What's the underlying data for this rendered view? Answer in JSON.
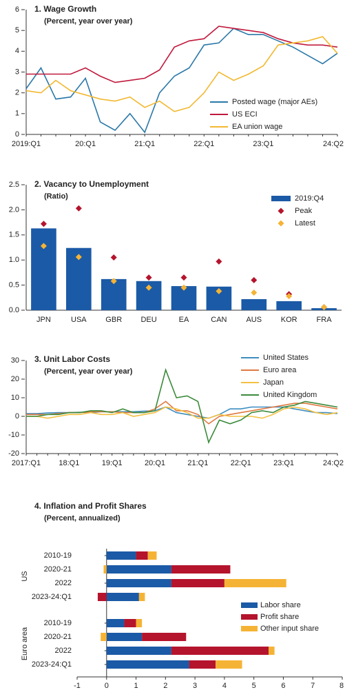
{
  "chart_data": [
    {
      "type": "line",
      "title": "1. Wage Growth",
      "subtitle": "(Percent, year over year)",
      "categories": [
        "2019:Q1",
        null,
        null,
        null,
        "20:Q1",
        null,
        null,
        null,
        "21:Q1",
        null,
        null,
        null,
        "22:Q1",
        null,
        null,
        null,
        "23:Q1",
        null,
        null,
        null,
        null,
        "24:Q2"
      ],
      "ylim": [
        0,
        6
      ],
      "yticks": [
        0,
        1,
        2,
        3,
        4,
        5,
        6
      ],
      "legend": "lower right",
      "series": [
        {
          "name": "Posted wage (major AEs)",
          "color": "#2a78a8",
          "values": [
            2.2,
            3.2,
            1.7,
            1.8,
            2.7,
            0.6,
            0.2,
            1.0,
            0.1,
            2.0,
            2.8,
            3.2,
            4.3,
            4.4,
            5.1,
            4.8,
            4.8,
            4.5,
            4.2,
            3.8,
            3.4,
            3.9
          ]
        },
        {
          "name": "US ECI",
          "color": "#c0183c",
          "values": [
            2.9,
            2.9,
            2.9,
            2.9,
            3.2,
            2.8,
            2.5,
            2.6,
            2.7,
            3.1,
            4.2,
            4.5,
            4.6,
            5.2,
            5.1,
            5.0,
            4.9,
            4.6,
            4.4,
            4.3,
            4.3,
            4.2
          ]
        },
        {
          "name": "EA union wage",
          "color": "#f2b830",
          "values": [
            2.1,
            2.0,
            2.6,
            2.1,
            1.9,
            1.7,
            1.6,
            1.8,
            1.3,
            1.6,
            1.1,
            1.3,
            2.0,
            3.0,
            2.6,
            2.9,
            3.3,
            4.3,
            4.4,
            4.5,
            4.7,
            3.9
          ]
        }
      ]
    },
    {
      "type": "bar",
      "title": "2. Vacancy to Unemployment",
      "subtitle": "(Ratio)",
      "categories": [
        "JPN",
        "USA",
        "GBR",
        "DEU",
        "EA",
        "CAN",
        "AUS",
        "KOR",
        "FRA"
      ],
      "ylim": [
        0,
        2.5
      ],
      "yticks": [
        {
          "value": 0,
          "label": "0.0"
        },
        0.5,
        {
          "value": 1,
          "label": "1.0"
        },
        1.5,
        {
          "value": 2,
          "label": "2.0"
        },
        2.5
      ],
      "legend": "upper right",
      "series": [
        {
          "name": "2019:Q4",
          "mark": "bar",
          "color": "#1b5aa6",
          "values": [
            1.63,
            1.24,
            0.62,
            0.58,
            0.48,
            0.47,
            0.22,
            0.18,
            0.04
          ]
        },
        {
          "name": "Peak",
          "mark": "diamond",
          "color": "#b5142d",
          "values": [
            1.72,
            2.03,
            1.05,
            0.65,
            0.65,
            0.97,
            0.6,
            0.32,
            0.06
          ]
        },
        {
          "name": "Latest",
          "mark": "diamond",
          "color": "#f5b335",
          "values": [
            1.28,
            1.06,
            0.58,
            0.45,
            0.45,
            0.38,
            0.35,
            0.28,
            0.06
          ]
        }
      ]
    },
    {
      "type": "line",
      "title": "3. Unit Labor Costs",
      "subtitle": "(Percent, year over year)",
      "categories": [
        "2017:Q1",
        null,
        null,
        null,
        "18:Q1",
        null,
        null,
        null,
        "19:Q1",
        null,
        null,
        null,
        "20:Q1",
        null,
        null,
        null,
        "21:Q1",
        null,
        null,
        null,
        "22:Q1",
        null,
        null,
        null,
        "23:Q1",
        null,
        null,
        null,
        null,
        "24:Q2"
      ],
      "ylim": [
        -20,
        30
      ],
      "yticks": [
        -20,
        -10,
        0,
        10,
        20,
        30
      ],
      "legend": "upper right",
      "series": [
        {
          "name": "United States",
          "color": "#3c8cc0",
          "values": [
            1.5,
            1.5,
            1.8,
            2,
            2,
            2.2,
            2,
            2.5,
            2.5,
            2.5,
            2.5,
            2.8,
            3,
            5,
            2,
            1,
            0,
            -1,
            1,
            4,
            4,
            5,
            5,
            5,
            5,
            4,
            3,
            2,
            2,
            1.5
          ]
        },
        {
          "name": "Euro area",
          "color": "#e07840",
          "values": [
            1,
            1,
            1,
            1.5,
            2,
            2,
            2.5,
            2.5,
            2.5,
            2,
            2,
            2,
            4,
            8,
            3,
            3,
            1,
            -4,
            0,
            1,
            2,
            3,
            4,
            5,
            6,
            7,
            7,
            6,
            5,
            4
          ]
        },
        {
          "name": "Japan",
          "color": "#f4c040",
          "values": [
            0,
            0,
            -1,
            0,
            1,
            1,
            2,
            1,
            1,
            2,
            0,
            1,
            2,
            5,
            4,
            2,
            -1,
            -1,
            1,
            0,
            0,
            0,
            -1,
            1,
            4,
            5,
            4,
            2,
            1,
            2
          ]
        },
        {
          "name": "United Kingdom",
          "color": "#3a8a3a",
          "values": [
            0,
            0,
            1,
            1,
            2,
            2,
            3,
            3,
            2,
            4,
            2,
            2,
            3,
            25,
            10,
            11,
            8,
            -14,
            -2,
            -4,
            -2,
            2,
            3,
            2,
            5,
            6,
            8,
            7,
            6,
            5
          ]
        }
      ]
    },
    {
      "type": "hbar-stacked",
      "title": "4. Inflation and Profit Shares",
      "subtitle": "(Percent, annualized)",
      "groups": [
        "US",
        "Euro area"
      ],
      "categories": [
        "2010-19",
        "2020-21",
        "2022",
        "2023-24:Q1",
        "2010-19",
        "2020-21",
        "2022",
        "2023-24:Q1"
      ],
      "xlim": [
        -1,
        8
      ],
      "xticks": [
        -1,
        0,
        1,
        2,
        3,
        4,
        5,
        6,
        7,
        8
      ],
      "legend": "center right",
      "series": [
        {
          "name": "Labor share",
          "color": "#1b5aa6",
          "values": [
            1.0,
            2.2,
            2.2,
            1.1,
            0.6,
            1.2,
            2.2,
            2.8
          ]
        },
        {
          "name": "Profit share",
          "color": "#b5142d",
          "values": [
            0.4,
            2.0,
            1.8,
            -0.3,
            0.4,
            1.5,
            3.3,
            0.9
          ]
        },
        {
          "name": "Other input share",
          "color": "#f5b335",
          "values": [
            0.3,
            -0.1,
            2.1,
            0.2,
            0.2,
            -0.2,
            0.2,
            0.9
          ]
        }
      ]
    }
  ]
}
